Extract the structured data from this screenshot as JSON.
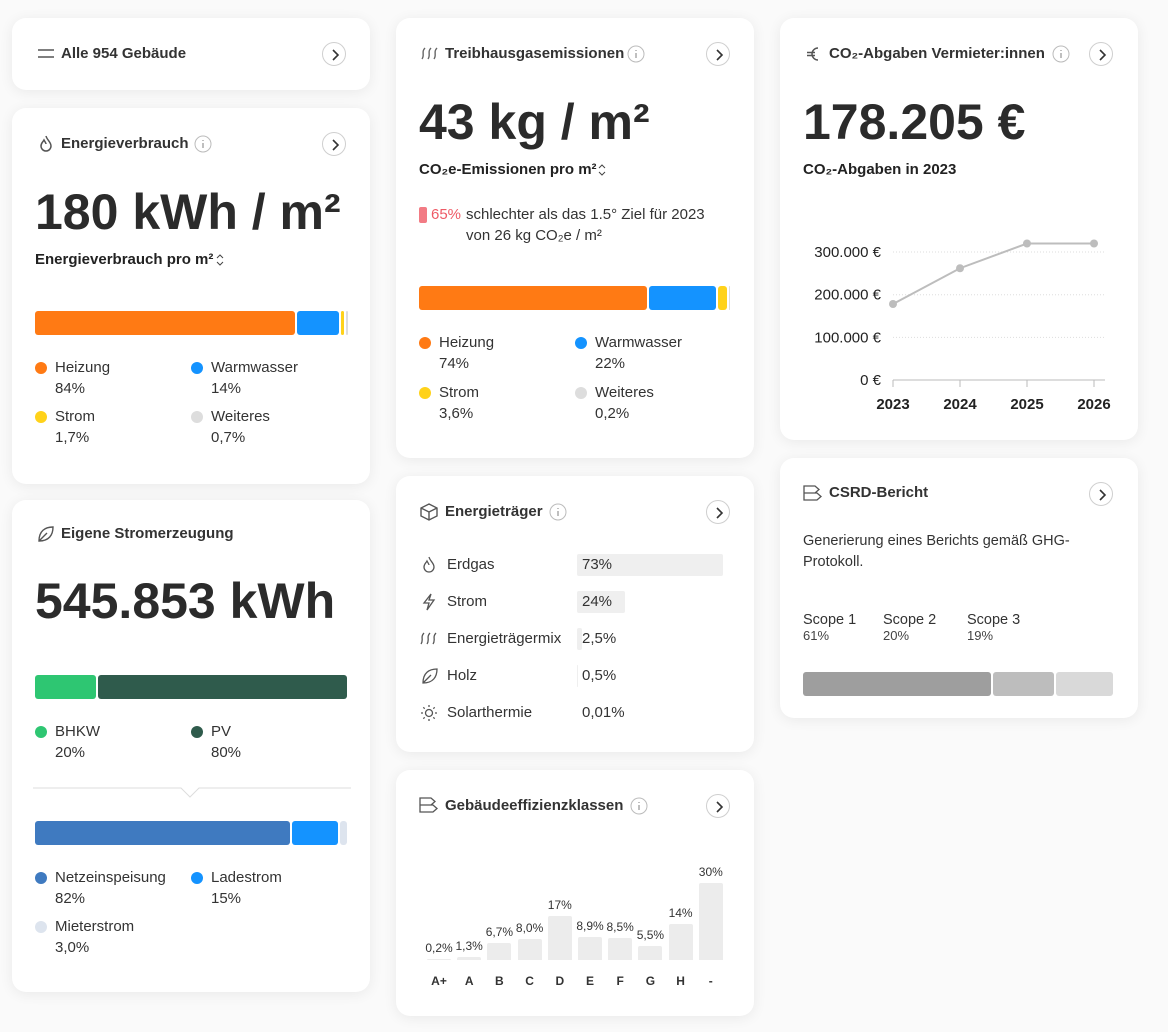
{
  "cards": {
    "buildings": {
      "title": "Alle 954 Gebäude"
    },
    "energy": {
      "title": "Energieverbrauch",
      "value": "180 kWh / m²",
      "metric": "Energieverbrauch pro m²",
      "segments": [
        {
          "name": "Heizung",
          "value": 84,
          "label": "84%",
          "color": "#ff7a14"
        },
        {
          "name": "Warmwasser",
          "value": 14,
          "label": "14%",
          "color": "#1493ff"
        },
        {
          "name": "Strom",
          "value": 1.7,
          "label": "1,7%",
          "color": "#ffd21a"
        },
        {
          "name": "Weiteres",
          "value": 0.7,
          "label": "0,7%",
          "color": "#dddddd"
        }
      ]
    },
    "emissions": {
      "title": "Treibhausgasemissionen",
      "value": "43 kg / m²",
      "metric": "CO₂e-Emissionen pro m²",
      "note": {
        "percent": "65%",
        "line1": "schlechter als das 1.5° Ziel für 2023",
        "line2": "von 26 kg CO₂e / m²"
      },
      "segments": [
        {
          "name": "Heizung",
          "value": 74,
          "label": "74%",
          "color": "#ff7a14"
        },
        {
          "name": "Warmwasser",
          "value": 22,
          "label": "22%",
          "color": "#1493ff"
        },
        {
          "name": "Strom",
          "value": 3.6,
          "label": "3,6%",
          "color": "#ffd21a"
        },
        {
          "name": "Weiteres",
          "value": 0.2,
          "label": "0,2%",
          "color": "#dddddd"
        }
      ]
    },
    "co2": {
      "title": "CO₂-Abgaben Vermieter:innen",
      "value": "178.205 €",
      "metric": "CO₂-Abgaben in 2023",
      "chart": {
        "type": "line",
        "categories": [
          "2023",
          "2024",
          "2025",
          "2026"
        ],
        "values": [
          178205,
          262000,
          320000,
          320000
        ],
        "color": "#bdbdbd",
        "ylim": [
          0,
          320000
        ],
        "yticks": [
          {
            "value": 0,
            "label": "0 €"
          },
          {
            "value": 100000,
            "label": "100.000 €"
          },
          {
            "value": 200000,
            "label": "200.000 €"
          },
          {
            "value": 300000,
            "label": "300.000 €"
          }
        ],
        "grid": true
      }
    },
    "generation": {
      "title": "Eigene Stromerzeugung",
      "value": "545.853 kWh",
      "sources": [
        {
          "name": "BHKW",
          "value": 20,
          "label": "20%",
          "color": "#2ec672"
        },
        {
          "name": "PV",
          "value": 80,
          "label": "80%",
          "color": "#2f5b4c"
        }
      ],
      "usage": [
        {
          "name": "Netzeinspeisung",
          "value": 82,
          "label": "82%",
          "color": "#3f7ac0"
        },
        {
          "name": "Ladestrom",
          "value": 15,
          "label": "15%",
          "color": "#1493ff"
        },
        {
          "name": "Mieterstrom",
          "value": 3.0,
          "label": "3,0%",
          "color": "#dde4ee"
        }
      ]
    },
    "carriers": {
      "title": "Energieträger",
      "rows": [
        {
          "name": "Erdgas",
          "value": 73,
          "label": "73%"
        },
        {
          "name": "Strom",
          "value": 24,
          "label": "24%"
        },
        {
          "name": "Energieträgermix",
          "value": 2.5,
          "label": "2,5%"
        },
        {
          "name": "Holz",
          "value": 0.5,
          "label": "0,5%"
        },
        {
          "name": "Solarthermie",
          "value": 0.01,
          "label": "0,01%"
        }
      ]
    },
    "efficiency": {
      "title": "Gebäudeeffizienzklassen",
      "chart": {
        "type": "bar",
        "categories": [
          "A+",
          "A",
          "B",
          "C",
          "D",
          "E",
          "F",
          "G",
          "H",
          "-"
        ],
        "values": [
          0.2,
          1.3,
          6.7,
          8.0,
          17,
          8.9,
          8.5,
          5.5,
          14,
          30
        ],
        "value_labels": [
          "0,2%",
          "1,3%",
          "6,7%",
          "8,0%",
          "17%",
          "8,9%",
          "8,5%",
          "5,5%",
          "14%",
          "30%"
        ],
        "color": "#ececec"
      }
    },
    "csrd": {
      "title": "CSRD-Bericht",
      "text": "Generierung eines Berichts gemäß GHG-Protokoll.",
      "scopes": [
        {
          "name": "Scope 1",
          "value": 61,
          "label": "61%",
          "color": "#9e9e9e"
        },
        {
          "name": "Scope 2",
          "value": 20,
          "label": "20%",
          "color": "#bdbdbd"
        },
        {
          "name": "Scope 3",
          "value": 19,
          "label": "19%",
          "color": "#d9d9d9"
        }
      ]
    }
  }
}
